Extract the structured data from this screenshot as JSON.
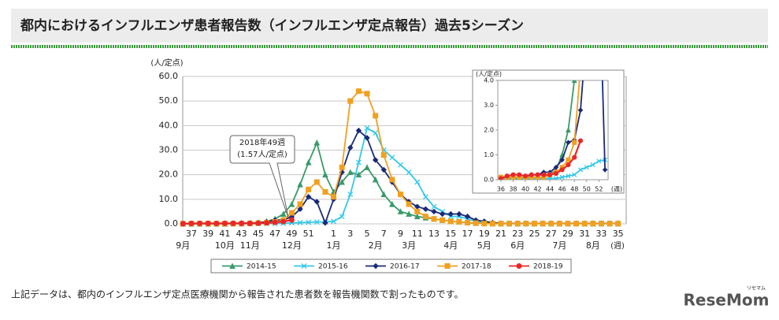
{
  "header": {
    "title": "都内におけるインフルエンザ患者報告数（インフルエンザ定点報告）過去5シーズン"
  },
  "chart_data": [
    {
      "type": "line",
      "y_label": "(人/定点)",
      "x_unit": "(週)",
      "categories": [
        null,
        "37",
        null,
        "39",
        null,
        "41",
        null,
        "43",
        null,
        "45",
        null,
        "47",
        null,
        "49",
        null,
        "51",
        null,
        null,
        "1",
        null,
        "3",
        null,
        "5",
        null,
        "7",
        null,
        "9",
        null,
        "11",
        null,
        "13",
        null,
        "15",
        null,
        "17",
        null,
        "19",
        null,
        "21",
        null,
        "23",
        null,
        "25",
        null,
        "27",
        null,
        "29",
        null,
        "31",
        null,
        "33",
        null,
        "35"
      ],
      "month_labels": [
        "9月",
        null,
        null,
        null,
        null,
        "10月",
        null,
        null,
        "11月",
        null,
        null,
        null,
        null,
        "12月",
        null,
        null,
        null,
        null,
        "1月",
        null,
        null,
        null,
        null,
        "2月",
        null,
        null,
        null,
        "3月",
        null,
        null,
        null,
        null,
        "4月",
        null,
        null,
        null,
        "5月",
        null,
        null,
        null,
        "6月",
        null,
        null,
        null,
        null,
        "7月",
        null,
        null,
        null,
        "8月",
        null,
        null,
        null
      ],
      "ylim": [
        0,
        60
      ],
      "yticks": [
        {
          "value": 0,
          "label": "0.0"
        },
        {
          "value": 10,
          "label": "10.0"
        },
        {
          "value": 20,
          "label": "20.0"
        },
        {
          "value": 30,
          "label": "30.0"
        },
        {
          "value": 40,
          "label": "40.0"
        },
        {
          "value": 50,
          "label": "50.0"
        },
        {
          "value": 60,
          "label": "60.0"
        }
      ],
      "grid": true,
      "annotation": [
        "2018年49週",
        "(1.57人/定点)"
      ],
      "series": [
        {
          "name": "2014-15",
          "color": "#3a9a6a",
          "marker": "triangle",
          "values": [
            0,
            0,
            0,
            0,
            0,
            0,
            0.1,
            0.1,
            0.2,
            0.4,
            1,
            2,
            4,
            8,
            16,
            25,
            33,
            20,
            13,
            17,
            21,
            20,
            23,
            18,
            12,
            8,
            5,
            4,
            3,
            2.5,
            2,
            1.5,
            1,
            0.8,
            0.5,
            0.3,
            0.2,
            0.1,
            0.1,
            0.1,
            0.1,
            0.1,
            0.1,
            0.1,
            0.1,
            0.1,
            0.1,
            0.1,
            0.1,
            0.1,
            0.1,
            0.1,
            0.1
          ]
        },
        {
          "name": "2015-16",
          "color": "#33c8e8",
          "marker": "cross",
          "values": [
            0.05,
            0.05,
            0.05,
            0.05,
            0.05,
            0.05,
            0.05,
            0.05,
            0.05,
            0.05,
            0.1,
            0.15,
            0.2,
            0.4,
            0.5,
            0.6,
            0.75,
            0.8,
            1,
            3,
            12,
            25,
            39,
            37,
            30,
            27,
            24,
            21,
            17,
            11,
            7,
            5,
            3,
            3,
            2,
            1,
            0.5,
            0.2,
            0.2,
            0.2,
            0.2,
            0.2,
            0.2,
            0.2,
            0.2,
            0.2,
            0.2,
            0.2,
            0.2,
            0.2,
            0.2,
            0.2,
            0.2
          ]
        },
        {
          "name": "2016-17",
          "color": "#1a2a78",
          "marker": "diamond",
          "values": [
            0.1,
            0.1,
            0.1,
            0.1,
            0.1,
            0.2,
            0.2,
            0.3,
            0.3,
            0.5,
            0.8,
            1.5,
            1.6,
            2.8,
            6,
            11,
            9,
            0.4,
            10,
            21,
            31,
            38,
            35,
            26,
            22,
            17,
            12,
            9,
            7,
            6,
            5,
            4,
            4,
            4,
            3,
            1.5,
            1,
            0.5,
            0.2,
            0.2,
            0.2,
            0.2,
            0.2,
            0.2,
            0.2,
            0.2,
            0.2,
            0.2,
            0.2,
            0.2,
            0.2,
            0.2,
            0.2
          ]
        },
        {
          "name": "2017-18",
          "color": "#f0a020",
          "marker": "square",
          "values": [
            0.1,
            0.1,
            0.1,
            0.1,
            0.1,
            0.1,
            0.1,
            0.1,
            0.2,
            0.3,
            0.5,
            0.8,
            1.5,
            4.5,
            8,
            14,
            17,
            13,
            11,
            23,
            50,
            54,
            53,
            44,
            28,
            18,
            12,
            8,
            5,
            3,
            2,
            1.5,
            1,
            0.8,
            0.5,
            0.3,
            0.1,
            0.1,
            0.1,
            0.1,
            0.1,
            0.1,
            0.1,
            0.1,
            0.1,
            0.1,
            0.1,
            0.1,
            0.1,
            0.1,
            0.1,
            0.1,
            0.1
          ]
        },
        {
          "name": "2018-19",
          "color": "#e82828",
          "marker": "circle",
          "values": [
            0.05,
            0.15,
            0.2,
            0.2,
            0.15,
            0.2,
            0.2,
            0.2,
            0.2,
            0.25,
            0.4,
            0.6,
            0.9,
            1.57,
            null,
            null,
            null,
            null,
            null,
            null,
            null,
            null,
            null,
            null,
            null,
            null,
            null,
            null,
            null,
            null,
            null,
            null,
            null,
            null,
            null,
            null,
            null,
            null,
            null,
            null,
            null,
            null,
            null,
            null,
            null,
            null,
            null,
            null,
            null,
            null,
            null,
            null,
            null
          ]
        }
      ]
    },
    {
      "type": "line",
      "y_label": "(人/定点)",
      "x_unit": "(週)",
      "xlim": [
        35.5,
        53.5
      ],
      "xticks": [
        36,
        38,
        40,
        42,
        44,
        46,
        48,
        50,
        52
      ],
      "ylim": [
        0,
        4
      ],
      "yticks": [
        {
          "value": 0,
          "label": "0.0"
        },
        {
          "value": 1,
          "label": "1.0"
        },
        {
          "value": 2,
          "label": "2.0"
        },
        {
          "value": 3,
          "label": "3.0"
        },
        {
          "value": 4,
          "label": "4.0"
        }
      ]
    }
  ],
  "footnote": "上記データは、都内のインフルエンザ定点医療機関から報告された患者数を報告機関数で割ったものです。",
  "logo": {
    "text": "ReseMom",
    "kana": "リセマム"
  }
}
